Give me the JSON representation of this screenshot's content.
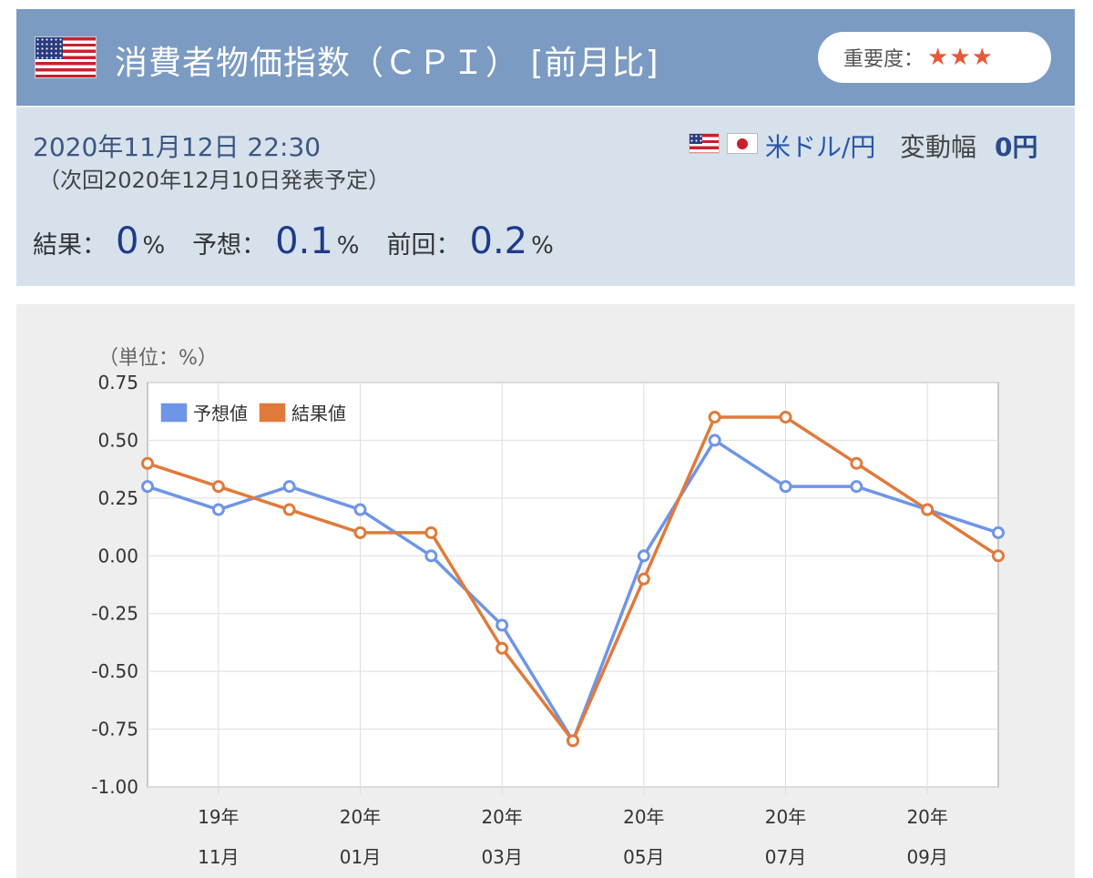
{
  "header": {
    "title": "消費者物価指数（ＣＰＩ） [前月比]",
    "importance_label": "重要度：",
    "importance_stars": "★★★",
    "flag_icon": "us-flag-icon"
  },
  "release": {
    "date": "2020年11月12日 22:30",
    "next": "（次回2020年12月10日発表予定）",
    "pair": "米ドル/円",
    "volatility_label": "変動幅",
    "volatility_value": "0円",
    "result_label": "結果：",
    "result_value": "0",
    "forecast_label": "予想：",
    "forecast_value": "0.1",
    "previous_label": "前回：",
    "previous_value": "0.2",
    "unit": "%"
  },
  "chart_data": {
    "type": "line",
    "unit_label": "（単位：%）",
    "ylim": [
      -1.0,
      0.75
    ],
    "yticks": [
      "0.75",
      "0.50",
      "0.25",
      "0.00",
      "-0.25",
      "-0.50",
      "-0.75",
      "-1.00"
    ],
    "ytick_values": [
      0.75,
      0.5,
      0.25,
      0,
      -0.25,
      -0.5,
      -0.75,
      -1.0
    ],
    "x_count": 13,
    "xtick_labels": [
      {
        "index": 1,
        "year": "19年",
        "month": "11月"
      },
      {
        "index": 3,
        "year": "20年",
        "month": "01月"
      },
      {
        "index": 5,
        "year": "20年",
        "month": "03月"
      },
      {
        "index": 7,
        "year": "20年",
        "month": "05月"
      },
      {
        "index": 9,
        "year": "20年",
        "month": "07月"
      },
      {
        "index": 11,
        "year": "20年",
        "month": "09月"
      }
    ],
    "legend_position": "top-left",
    "grid": true,
    "series": [
      {
        "name": "予想値",
        "color": "#6f95e8",
        "values": [
          0.3,
          0.2,
          0.3,
          0.2,
          0.0,
          -0.3,
          -0.8,
          0.0,
          0.5,
          0.3,
          0.3,
          0.2,
          0.1
        ]
      },
      {
        "name": "結果値",
        "color": "#e07a3a",
        "values": [
          0.4,
          0.3,
          0.2,
          0.1,
          0.1,
          -0.4,
          -0.8,
          -0.1,
          0.6,
          0.6,
          0.4,
          0.2,
          0.0
        ]
      }
    ]
  }
}
